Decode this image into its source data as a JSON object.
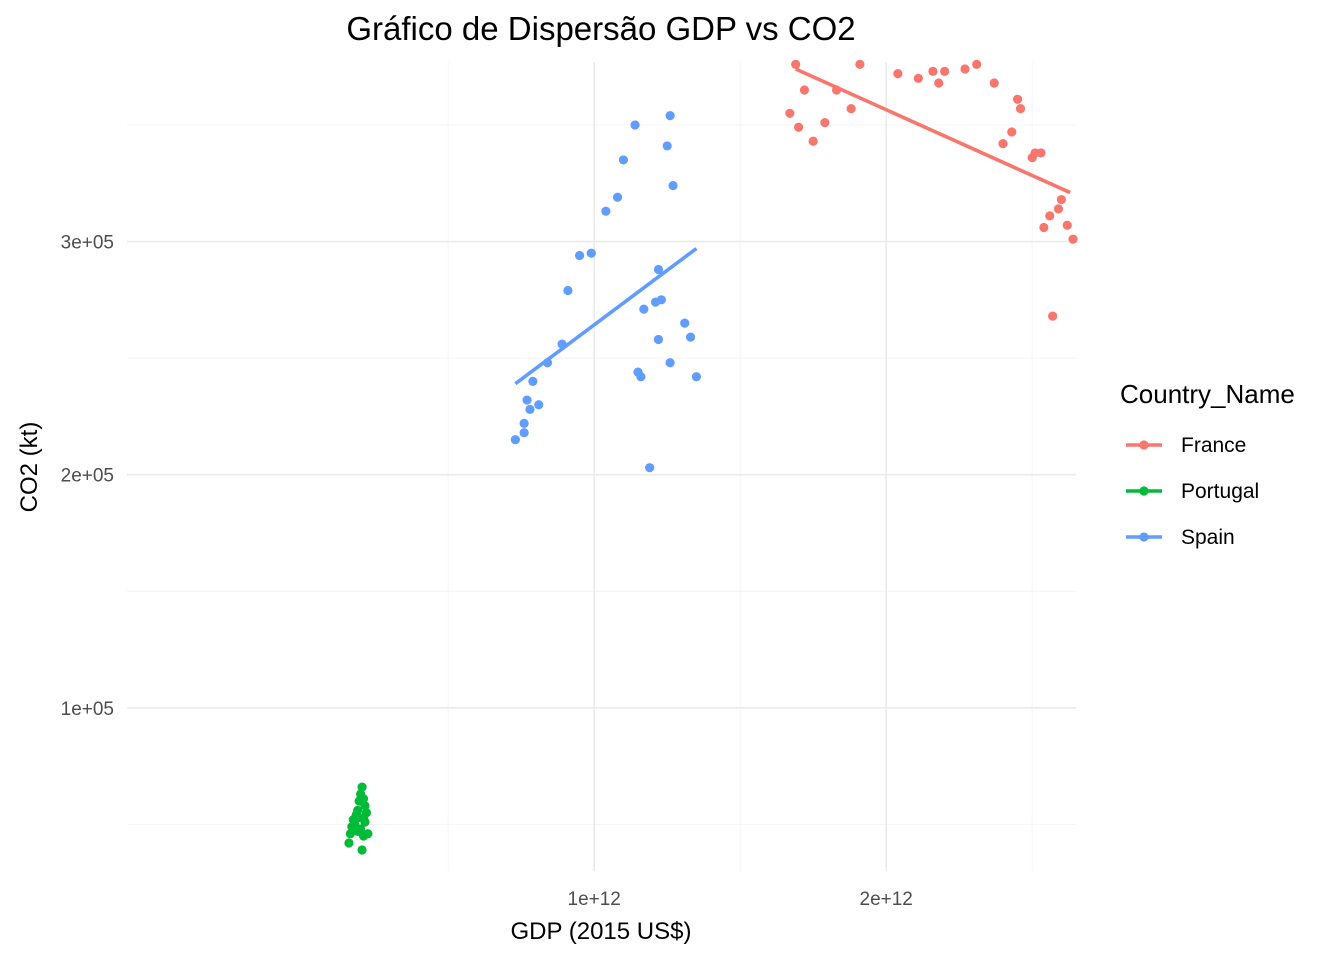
{
  "chart_data": {
    "type": "scatter",
    "title": "Gráfico de Dispersão GDP vs CO2",
    "xlabel": "GDP (2015 US$)",
    "ylabel": "CO2 (kt)",
    "xlim": [
      -600000000000.0,
      2650000000000.0
    ],
    "ylim": [
      30000,
      377000
    ],
    "x_ticks": [
      {
        "value": 1000000000000.0,
        "label": "1e+12"
      },
      {
        "value": 2000000000000.0,
        "label": "2e+12"
      }
    ],
    "x_minor_ticks": [
      500000000000.0,
      1500000000000.0,
      2500000000000.0
    ],
    "y_ticks": [
      {
        "value": 100000,
        "label": "1e+05"
      },
      {
        "value": 200000,
        "label": "2e+05"
      },
      {
        "value": 300000,
        "label": "3e+05"
      }
    ],
    "y_minor_ticks": [
      50000,
      150000,
      250000,
      350000
    ],
    "grid": true,
    "legend": {
      "title": "Country_Name",
      "position": "right"
    },
    "series": [
      {
        "name": "France",
        "color": "#F8766D",
        "points": [
          [
            1670000000000.0,
            355000
          ],
          [
            1690000000000.0,
            376000
          ],
          [
            1700000000000.0,
            349000
          ],
          [
            1720000000000.0,
            365000
          ],
          [
            1750000000000.0,
            343000
          ],
          [
            1790000000000.0,
            351000
          ],
          [
            1830000000000.0,
            365000
          ],
          [
            1880000000000.0,
            357000
          ],
          [
            1910000000000.0,
            376000
          ],
          [
            2040000000000.0,
            372000
          ],
          [
            2110000000000.0,
            370000
          ],
          [
            2160000000000.0,
            373000
          ],
          [
            2180000000000.0,
            368000
          ],
          [
            2200000000000.0,
            373000
          ],
          [
            2270000000000.0,
            374000
          ],
          [
            2310000000000.0,
            376000
          ],
          [
            2370000000000.0,
            368000
          ],
          [
            2400000000000.0,
            342000
          ],
          [
            2430000000000.0,
            347000
          ],
          [
            2450000000000.0,
            361000
          ],
          [
            2460000000000.0,
            357000
          ],
          [
            2500000000000.0,
            336000
          ],
          [
            2510000000000.0,
            338000
          ],
          [
            2530000000000.0,
            338000
          ],
          [
            2540000000000.0,
            306000
          ],
          [
            2560000000000.0,
            311000
          ],
          [
            2570000000000.0,
            268000
          ],
          [
            2590000000000.0,
            314000
          ],
          [
            2600000000000.0,
            318000
          ],
          [
            2620000000000.0,
            307000
          ],
          [
            2640000000000.0,
            301000
          ]
        ],
        "trend": [
          [
            1690000000000.0,
            374000
          ],
          [
            2630000000000.0,
            321000
          ]
        ]
      },
      {
        "name": "Portugal",
        "color": "#00BA38",
        "points": [
          [
            160000000000.0,
            42000
          ],
          [
            165000000000.0,
            46000
          ],
          [
            170000000000.0,
            49000
          ],
          [
            175000000000.0,
            52000
          ],
          [
            180000000000.0,
            50000
          ],
          [
            185000000000.0,
            54000
          ],
          [
            190000000000.0,
            56000
          ],
          [
            195000000000.0,
            60000
          ],
          [
            200000000000.0,
            63000
          ],
          [
            205000000000.0,
            66000
          ],
          [
            200000000000.0,
            48000
          ],
          [
            210000000000.0,
            45000
          ],
          [
            205000000000.0,
            39000
          ],
          [
            210000000000.0,
            61000
          ],
          [
            215000000000.0,
            58000
          ],
          [
            220000000000.0,
            55000
          ],
          [
            195000000000.0,
            53000
          ],
          [
            190000000000.0,
            47000
          ],
          [
            225000000000.0,
            46000
          ],
          [
            215000000000.0,
            51000
          ]
        ],
        "trend": [
          [
            160000000000.0,
            52000
          ],
          [
            225000000000.0,
            53000
          ]
        ]
      },
      {
        "name": "Spain",
        "color": "#619CFF",
        "points": [
          [
            730000000000.0,
            215000
          ],
          [
            760000000000.0,
            218000
          ],
          [
            760000000000.0,
            222000
          ],
          [
            770000000000.0,
            232000
          ],
          [
            780000000000.0,
            228000
          ],
          [
            790000000000.0,
            240000
          ],
          [
            810000000000.0,
            230000
          ],
          [
            840000000000.0,
            248000
          ],
          [
            890000000000.0,
            256000
          ],
          [
            910000000000.0,
            279000
          ],
          [
            950000000000.0,
            294000
          ],
          [
            990000000000.0,
            295000
          ],
          [
            1040000000000.0,
            313000
          ],
          [
            1080000000000.0,
            319000
          ],
          [
            1100000000000.0,
            335000
          ],
          [
            1140000000000.0,
            350000
          ],
          [
            1150000000000.0,
            244000
          ],
          [
            1160000000000.0,
            242000
          ],
          [
            1170000000000.0,
            271000
          ],
          [
            1190000000000.0,
            203000
          ],
          [
            1210000000000.0,
            274000
          ],
          [
            1220000000000.0,
            288000
          ],
          [
            1230000000000.0,
            275000
          ],
          [
            1220000000000.0,
            258000
          ],
          [
            1260000000000.0,
            248000
          ],
          [
            1270000000000.0,
            324000
          ],
          [
            1250000000000.0,
            341000
          ],
          [
            1260000000000.0,
            354000
          ],
          [
            1310000000000.0,
            265000
          ],
          [
            1330000000000.0,
            259000
          ],
          [
            1350000000000.0,
            242000
          ]
        ],
        "trend": [
          [
            730000000000.0,
            239000
          ],
          [
            1350000000000.0,
            297000
          ]
        ]
      }
    ]
  }
}
